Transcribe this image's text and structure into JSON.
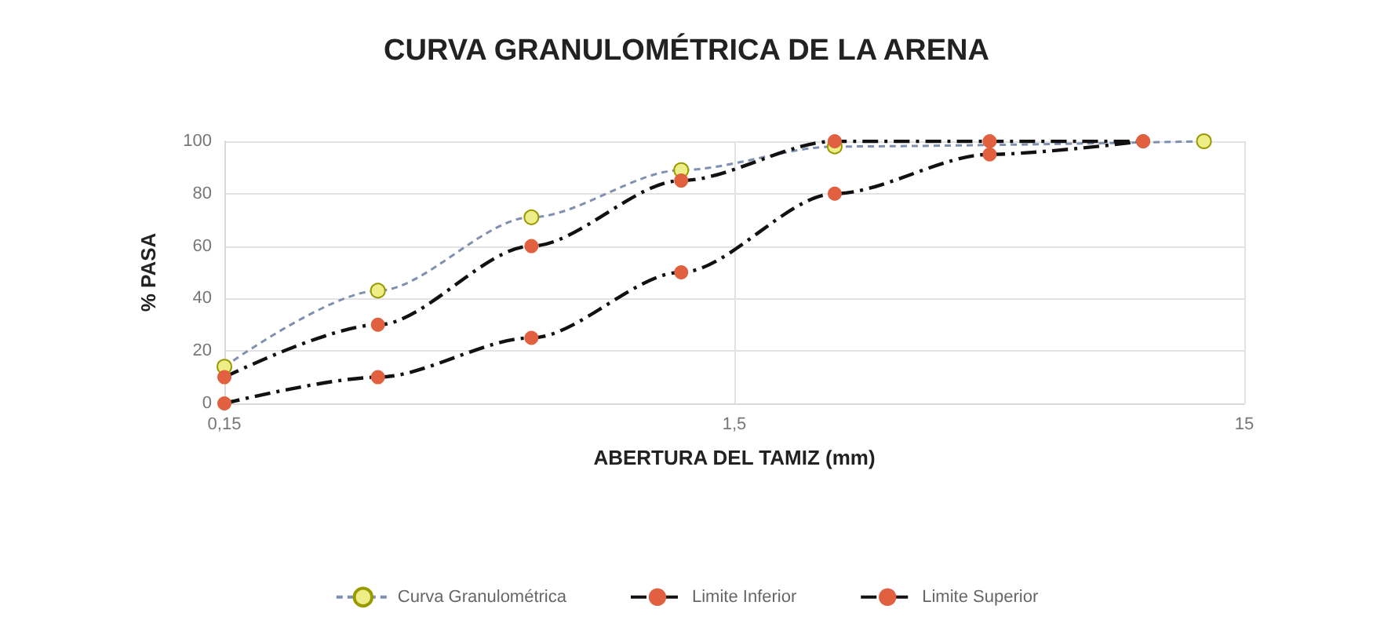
{
  "chart_data": {
    "type": "line",
    "title": "CURVA GRANULOMÉTRICA DE LA ARENA",
    "xlabel": "ABERTURA DEL TAMIZ (mm)",
    "ylabel": "% PASA",
    "log": "x",
    "xlim": [
      0.15,
      15
    ],
    "xticks": [
      {
        "value": 0.15,
        "label": "0,15"
      },
      {
        "value": 1.5,
        "label": "1,5"
      },
      {
        "value": 15,
        "label": "15"
      }
    ],
    "ylim": [
      0,
      100
    ],
    "yticks": [
      0,
      20,
      40,
      60,
      80,
      100
    ],
    "grid": true,
    "legend": "bottom",
    "marker": "circle",
    "series": [
      {
        "name": "Curva Granulométrica",
        "color": "#eeee88",
        "line_style": "dotted",
        "x": [
          0.15,
          0.3,
          0.6,
          1.18,
          2.36,
          4.75,
          9.5,
          12.5
        ],
        "values": [
          14,
          43,
          71,
          89,
          98,
          null,
          null,
          100
        ]
      },
      {
        "name": "Limite Inferior",
        "color": "#e06040",
        "line_style": "dashed",
        "x": [
          0.15,
          0.3,
          0.6,
          1.18,
          2.36,
          4.75,
          9.5
        ],
        "values": [
          0,
          10,
          25,
          50,
          80,
          95,
          100
        ]
      },
      {
        "name": "Limite Superior",
        "color": "#e06040",
        "line_style": "dashed",
        "x": [
          0.15,
          0.3,
          0.6,
          1.18,
          2.36,
          4.75,
          9.5
        ],
        "values": [
          10,
          30,
          60,
          85,
          100,
          100,
          100
        ]
      }
    ]
  }
}
